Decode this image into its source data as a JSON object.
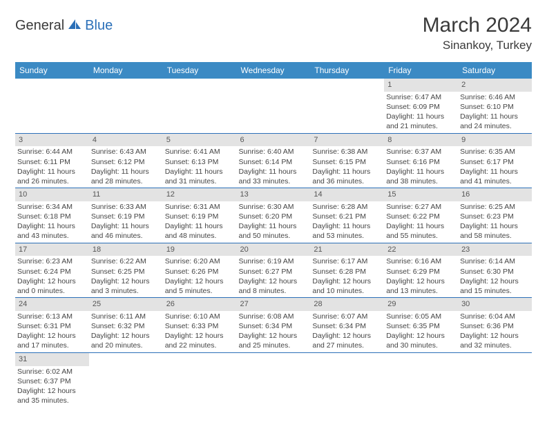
{
  "header": {
    "logo_general": "General",
    "logo_blue": "Blue",
    "month_title": "March 2024",
    "location": "Sinankoy, Turkey"
  },
  "style": {
    "header_bg": "#3b8ac4",
    "header_text": "#ffffff",
    "daynum_bg": "#e3e3e3",
    "border_color": "#2a6fb8",
    "text_color": "#444444",
    "logo_accent": "#2a6fb8",
    "body_font_size": 10.5,
    "daynum_font_size": 11,
    "header_font_size": 12,
    "title_font_size": 30,
    "location_font_size": 17
  },
  "weekdays": [
    "Sunday",
    "Monday",
    "Tuesday",
    "Wednesday",
    "Thursday",
    "Friday",
    "Saturday"
  ],
  "days": {
    "1": {
      "sunrise": "Sunrise: 6:47 AM",
      "sunset": "Sunset: 6:09 PM",
      "daylight": "Daylight: 11 hours and 21 minutes."
    },
    "2": {
      "sunrise": "Sunrise: 6:46 AM",
      "sunset": "Sunset: 6:10 PM",
      "daylight": "Daylight: 11 hours and 24 minutes."
    },
    "3": {
      "sunrise": "Sunrise: 6:44 AM",
      "sunset": "Sunset: 6:11 PM",
      "daylight": "Daylight: 11 hours and 26 minutes."
    },
    "4": {
      "sunrise": "Sunrise: 6:43 AM",
      "sunset": "Sunset: 6:12 PM",
      "daylight": "Daylight: 11 hours and 28 minutes."
    },
    "5": {
      "sunrise": "Sunrise: 6:41 AM",
      "sunset": "Sunset: 6:13 PM",
      "daylight": "Daylight: 11 hours and 31 minutes."
    },
    "6": {
      "sunrise": "Sunrise: 6:40 AM",
      "sunset": "Sunset: 6:14 PM",
      "daylight": "Daylight: 11 hours and 33 minutes."
    },
    "7": {
      "sunrise": "Sunrise: 6:38 AM",
      "sunset": "Sunset: 6:15 PM",
      "daylight": "Daylight: 11 hours and 36 minutes."
    },
    "8": {
      "sunrise": "Sunrise: 6:37 AM",
      "sunset": "Sunset: 6:16 PM",
      "daylight": "Daylight: 11 hours and 38 minutes."
    },
    "9": {
      "sunrise": "Sunrise: 6:35 AM",
      "sunset": "Sunset: 6:17 PM",
      "daylight": "Daylight: 11 hours and 41 minutes."
    },
    "10": {
      "sunrise": "Sunrise: 6:34 AM",
      "sunset": "Sunset: 6:18 PM",
      "daylight": "Daylight: 11 hours and 43 minutes."
    },
    "11": {
      "sunrise": "Sunrise: 6:33 AM",
      "sunset": "Sunset: 6:19 PM",
      "daylight": "Daylight: 11 hours and 46 minutes."
    },
    "12": {
      "sunrise": "Sunrise: 6:31 AM",
      "sunset": "Sunset: 6:19 PM",
      "daylight": "Daylight: 11 hours and 48 minutes."
    },
    "13": {
      "sunrise": "Sunrise: 6:30 AM",
      "sunset": "Sunset: 6:20 PM",
      "daylight": "Daylight: 11 hours and 50 minutes."
    },
    "14": {
      "sunrise": "Sunrise: 6:28 AM",
      "sunset": "Sunset: 6:21 PM",
      "daylight": "Daylight: 11 hours and 53 minutes."
    },
    "15": {
      "sunrise": "Sunrise: 6:27 AM",
      "sunset": "Sunset: 6:22 PM",
      "daylight": "Daylight: 11 hours and 55 minutes."
    },
    "16": {
      "sunrise": "Sunrise: 6:25 AM",
      "sunset": "Sunset: 6:23 PM",
      "daylight": "Daylight: 11 hours and 58 minutes."
    },
    "17": {
      "sunrise": "Sunrise: 6:23 AM",
      "sunset": "Sunset: 6:24 PM",
      "daylight": "Daylight: 12 hours and 0 minutes."
    },
    "18": {
      "sunrise": "Sunrise: 6:22 AM",
      "sunset": "Sunset: 6:25 PM",
      "daylight": "Daylight: 12 hours and 3 minutes."
    },
    "19": {
      "sunrise": "Sunrise: 6:20 AM",
      "sunset": "Sunset: 6:26 PM",
      "daylight": "Daylight: 12 hours and 5 minutes."
    },
    "20": {
      "sunrise": "Sunrise: 6:19 AM",
      "sunset": "Sunset: 6:27 PM",
      "daylight": "Daylight: 12 hours and 8 minutes."
    },
    "21": {
      "sunrise": "Sunrise: 6:17 AM",
      "sunset": "Sunset: 6:28 PM",
      "daylight": "Daylight: 12 hours and 10 minutes."
    },
    "22": {
      "sunrise": "Sunrise: 6:16 AM",
      "sunset": "Sunset: 6:29 PM",
      "daylight": "Daylight: 12 hours and 13 minutes."
    },
    "23": {
      "sunrise": "Sunrise: 6:14 AM",
      "sunset": "Sunset: 6:30 PM",
      "daylight": "Daylight: 12 hours and 15 minutes."
    },
    "24": {
      "sunrise": "Sunrise: 6:13 AM",
      "sunset": "Sunset: 6:31 PM",
      "daylight": "Daylight: 12 hours and 17 minutes."
    },
    "25": {
      "sunrise": "Sunrise: 6:11 AM",
      "sunset": "Sunset: 6:32 PM",
      "daylight": "Daylight: 12 hours and 20 minutes."
    },
    "26": {
      "sunrise": "Sunrise: 6:10 AM",
      "sunset": "Sunset: 6:33 PM",
      "daylight": "Daylight: 12 hours and 22 minutes."
    },
    "27": {
      "sunrise": "Sunrise: 6:08 AM",
      "sunset": "Sunset: 6:34 PM",
      "daylight": "Daylight: 12 hours and 25 minutes."
    },
    "28": {
      "sunrise": "Sunrise: 6:07 AM",
      "sunset": "Sunset: 6:34 PM",
      "daylight": "Daylight: 12 hours and 27 minutes."
    },
    "29": {
      "sunrise": "Sunrise: 6:05 AM",
      "sunset": "Sunset: 6:35 PM",
      "daylight": "Daylight: 12 hours and 30 minutes."
    },
    "30": {
      "sunrise": "Sunrise: 6:04 AM",
      "sunset": "Sunset: 6:36 PM",
      "daylight": "Daylight: 12 hours and 32 minutes."
    },
    "31": {
      "sunrise": "Sunrise: 6:02 AM",
      "sunset": "Sunset: 6:37 PM",
      "daylight": "Daylight: 12 hours and 35 minutes."
    }
  },
  "grid": [
    [
      null,
      null,
      null,
      null,
      null,
      "1",
      "2"
    ],
    [
      "3",
      "4",
      "5",
      "6",
      "7",
      "8",
      "9"
    ],
    [
      "10",
      "11",
      "12",
      "13",
      "14",
      "15",
      "16"
    ],
    [
      "17",
      "18",
      "19",
      "20",
      "21",
      "22",
      "23"
    ],
    [
      "24",
      "25",
      "26",
      "27",
      "28",
      "29",
      "30"
    ],
    [
      "31",
      null,
      null,
      null,
      null,
      null,
      null
    ]
  ]
}
